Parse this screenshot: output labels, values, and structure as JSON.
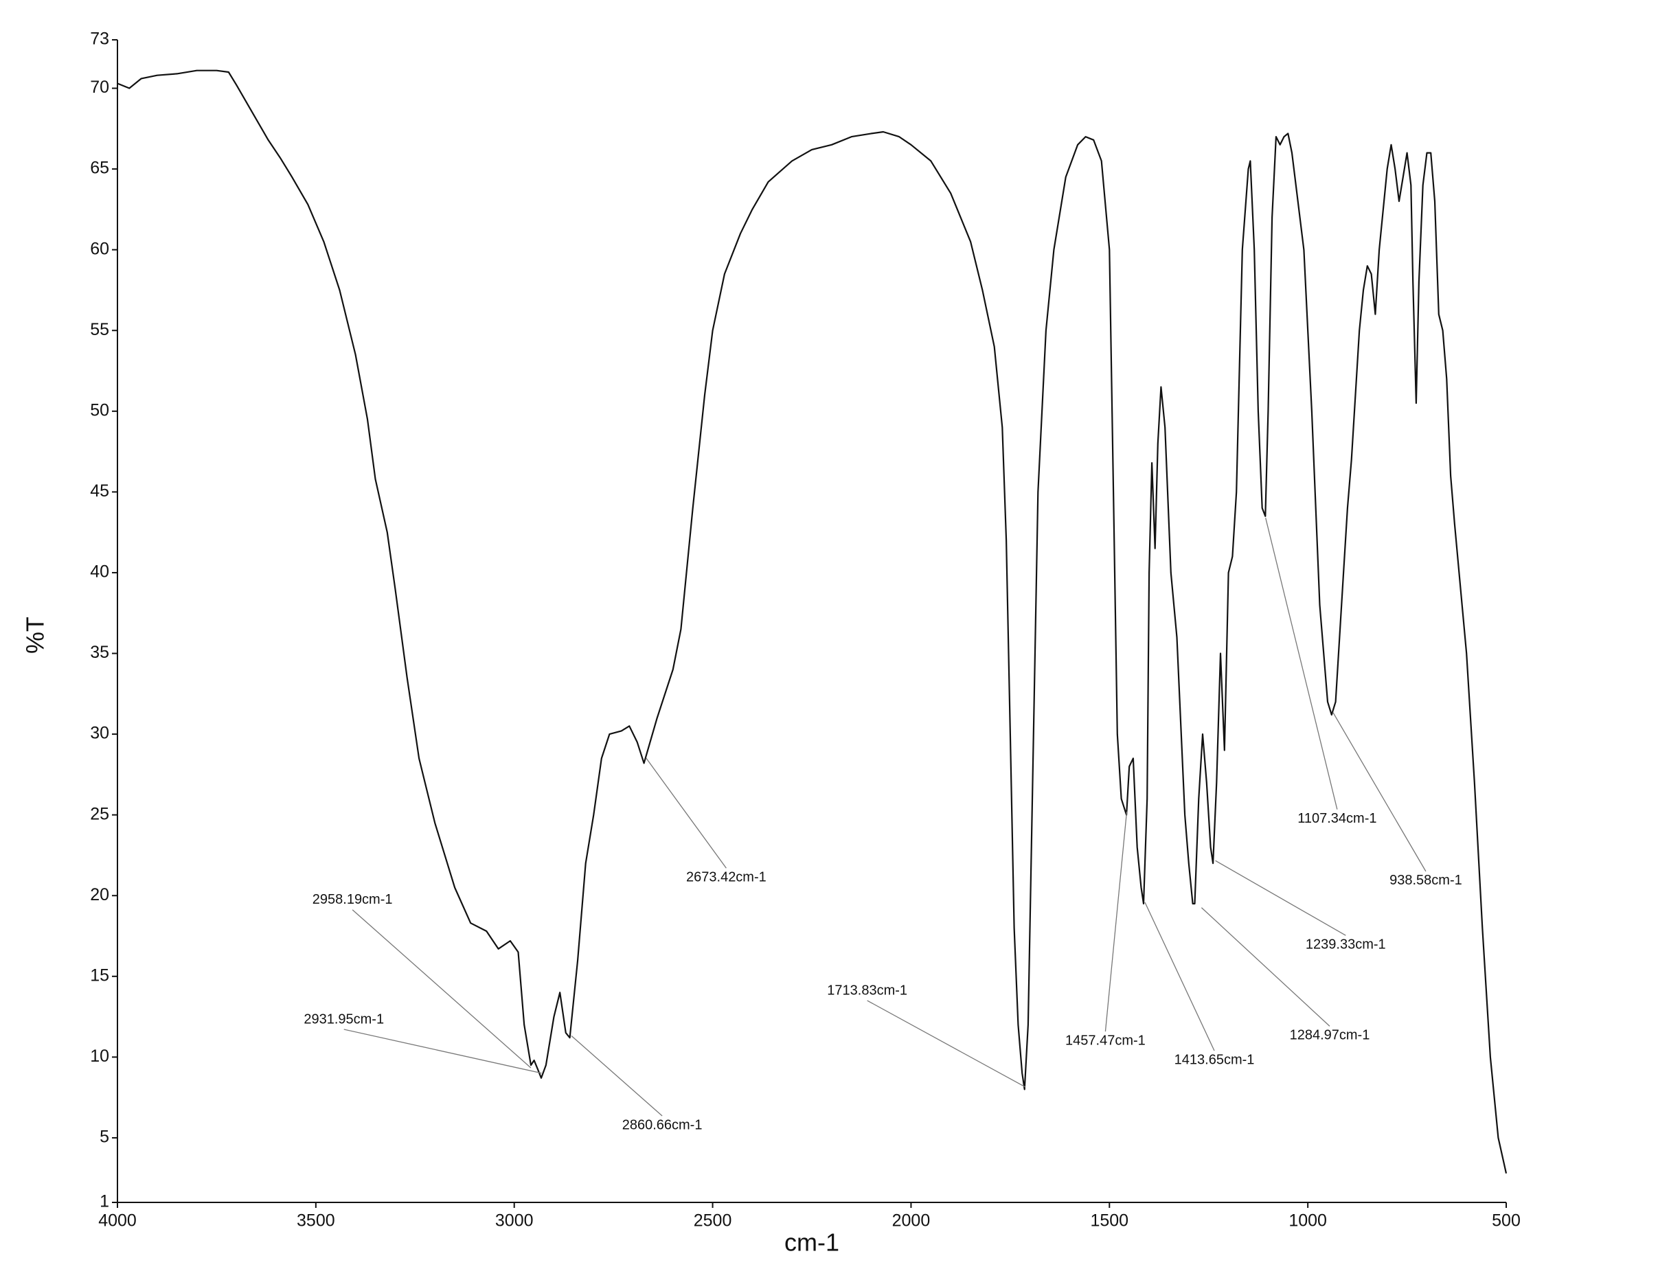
{
  "chart_data": {
    "type": "line",
    "xlabel": "cm-1",
    "ylabel": "%T",
    "xlim": [
      4000,
      500
    ],
    "ylim": [
      1,
      73
    ],
    "xticks": [
      4000,
      3500,
      3000,
      2500,
      2000,
      1500,
      1000,
      500
    ],
    "yticks": [
      1,
      5,
      10,
      15,
      20,
      25,
      30,
      35,
      40,
      45,
      50,
      55,
      60,
      65,
      70,
      73
    ],
    "color": "#111111",
    "series": [
      {
        "name": "%T",
        "x": [
          4000,
          3970,
          3940,
          3900,
          3850,
          3800,
          3750,
          3720,
          3700,
          3660,
          3620,
          3590,
          3560,
          3520,
          3480,
          3440,
          3400,
          3370,
          3350,
          3320,
          3300,
          3270,
          3240,
          3200,
          3150,
          3110,
          3070,
          3040,
          3010,
          2990,
          2975,
          2958,
          2950,
          2940,
          2932,
          2920,
          2900,
          2885,
          2870,
          2860,
          2840,
          2820,
          2800,
          2780,
          2760,
          2730,
          2710,
          2690,
          2673,
          2640,
          2600,
          2580,
          2550,
          2520,
          2500,
          2470,
          2430,
          2400,
          2360,
          2300,
          2250,
          2200,
          2150,
          2100,
          2070,
          2030,
          2000,
          1950,
          1900,
          1850,
          1820,
          1790,
          1770,
          1760,
          1750,
          1740,
          1730,
          1720,
          1714,
          1705,
          1695,
          1680,
          1660,
          1640,
          1610,
          1580,
          1560,
          1540,
          1520,
          1500,
          1490,
          1480,
          1470,
          1457,
          1450,
          1440,
          1430,
          1420,
          1414,
          1405,
          1400,
          1393,
          1385,
          1378,
          1370,
          1360,
          1345,
          1330,
          1310,
          1300,
          1290,
          1285,
          1275,
          1265,
          1255,
          1245,
          1239,
          1230,
          1220,
          1210,
          1200,
          1190,
          1180,
          1165,
          1150,
          1145,
          1135,
          1125,
          1115,
          1107,
          1100,
          1090,
          1080,
          1070,
          1060,
          1050,
          1040,
          1030,
          1010,
          990,
          970,
          950,
          940,
          930,
          910,
          900,
          890,
          870,
          860,
          850,
          840,
          830,
          820,
          800,
          790,
          780,
          770,
          760,
          750,
          740,
          735,
          727,
          720,
          710,
          700,
          690,
          680,
          670,
          660,
          650,
          640,
          630,
          600,
          580,
          560,
          540,
          520,
          500
        ],
        "values": [
          70.3,
          70.0,
          70.6,
          70.8,
          70.9,
          71.1,
          71.1,
          71.0,
          70.2,
          68.5,
          66.8,
          65.7,
          64.5,
          62.8,
          60.5,
          57.5,
          53.5,
          49.5,
          45.8,
          42.5,
          39,
          33.5,
          28.5,
          24.5,
          20.5,
          18.3,
          17.8,
          16.7,
          17.2,
          16.5,
          12,
          9.5,
          9.8,
          9.2,
          8.7,
          9.5,
          12.5,
          14,
          11.5,
          11.2,
          16,
          22,
          25,
          28.5,
          30,
          30.2,
          30.5,
          29.5,
          28.2,
          31,
          34,
          36.5,
          44,
          51,
          55,
          58.5,
          61,
          62.5,
          64.2,
          65.5,
          66.2,
          66.5,
          67,
          67.2,
          67.3,
          67,
          66.5,
          65.5,
          63.5,
          60.5,
          57.5,
          54,
          49,
          42,
          30,
          18,
          12,
          9,
          8,
          12,
          25,
          45,
          55,
          60,
          64.5,
          66.5,
          67,
          66.8,
          65.5,
          60,
          45,
          30,
          26,
          25,
          28,
          28.5,
          23,
          20.5,
          19.5,
          26,
          40,
          46.8,
          41.5,
          48,
          51.5,
          49,
          40,
          36,
          25,
          22,
          19.5,
          19.5,
          26,
          30,
          27,
          23,
          22,
          27,
          35,
          29,
          40,
          41,
          45,
          60,
          65,
          65.5,
          60,
          50,
          44,
          43.5,
          50,
          62,
          67,
          66.5,
          67,
          67.2,
          66,
          64,
          60,
          50,
          38,
          32,
          31.2,
          32,
          40,
          44,
          47,
          55,
          57.5,
          59,
          58.5,
          56,
          60,
          65,
          66.5,
          65,
          63,
          64.5,
          66,
          64,
          58,
          50.5,
          58,
          64,
          66,
          66,
          63,
          56,
          55,
          52,
          46,
          43,
          35,
          27,
          18,
          10,
          5,
          2.8
        ]
      }
    ],
    "annotations": [
      {
        "text": "2958.19cm-1"
      },
      {
        "text": "2931.95cm-1"
      },
      {
        "text": "2860.66cm-1"
      },
      {
        "text": "2673.42cm-1"
      },
      {
        "text": "1713.83cm-1"
      },
      {
        "text": "1457.47cm-1"
      },
      {
        "text": "1413.65cm-1"
      },
      {
        "text": "1284.97cm-1"
      },
      {
        "text": "1239.33cm-1"
      },
      {
        "text": "1107.34cm-1"
      },
      {
        "text": "938.58cm-1"
      }
    ]
  }
}
